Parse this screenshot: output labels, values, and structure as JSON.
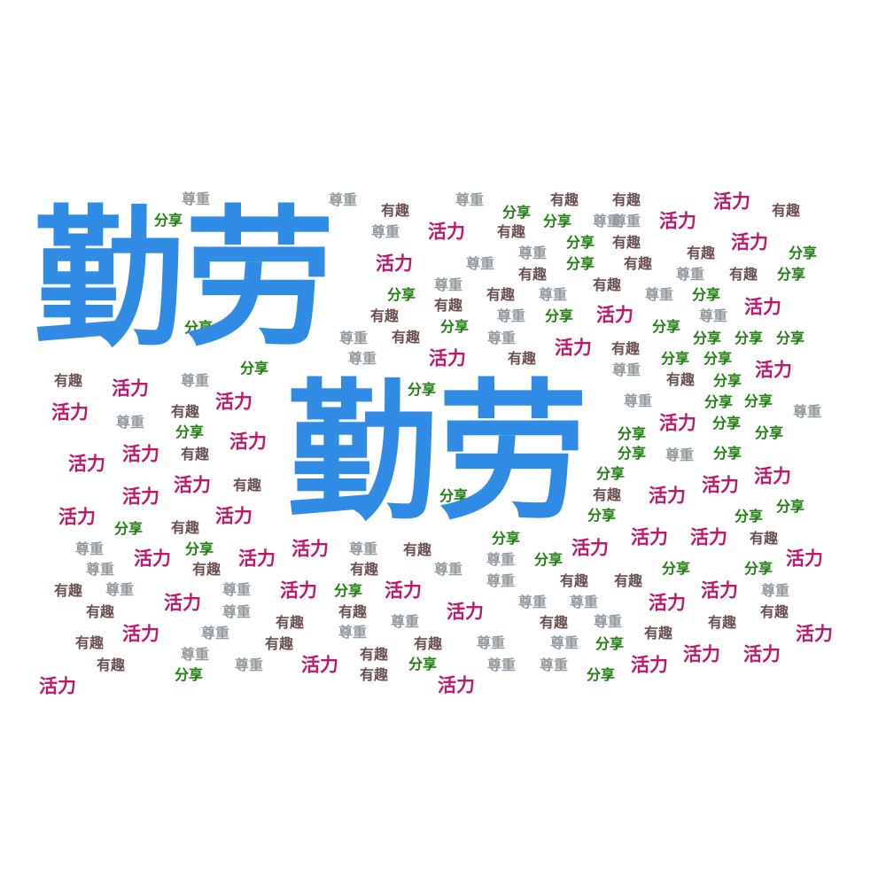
{
  "words": {
    "main": "勤劳",
    "activity": "活力",
    "share": "分享",
    "respect": "尊重",
    "fun": "有趣"
  },
  "colors": {
    "main": "#2f8be3",
    "activity": "#c0166c",
    "share": "#1e7f0f",
    "respect": "#939aa0",
    "fun": "#6b4f4f"
  }
}
